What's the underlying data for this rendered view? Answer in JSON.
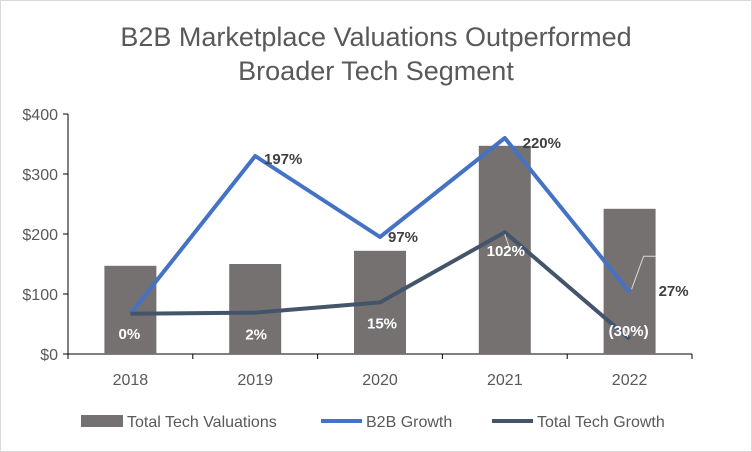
{
  "chart_data": {
    "type": "bar",
    "title_line1": "B2B Marketplace Valuations Outperformed",
    "title_line2": "Broader Tech Segment",
    "categories": [
      "2018",
      "2019",
      "2020",
      "2021",
      "2022"
    ],
    "ylim": [
      0,
      400
    ],
    "yticks": [
      {
        "value": 0,
        "label": "$0"
      },
      {
        "value": 100,
        "label": "$100"
      },
      {
        "value": 200,
        "label": "$200"
      },
      {
        "value": 300,
        "label": "$300"
      },
      {
        "value": 400,
        "label": "$400"
      }
    ],
    "grid": false,
    "legend_position": "bottom",
    "bar_series": {
      "name": "Total Tech Valuations",
      "color": "#767171",
      "values": [
        147,
        150,
        172,
        347,
        242
      ]
    },
    "line_series": [
      {
        "name": "B2B Growth",
        "color": "#4472c4",
        "values": [
          67,
          330,
          195,
          360,
          103
        ],
        "labels": [
          "0%",
          "197%",
          "97%",
          "220%",
          "27%"
        ]
      },
      {
        "name": "Total Tech Growth",
        "color": "#44546a",
        "values": [
          67,
          69,
          86,
          203,
          25
        ],
        "labels": [
          "0%",
          "2%",
          "15%",
          "102%",
          "(30%)"
        ]
      }
    ]
  }
}
